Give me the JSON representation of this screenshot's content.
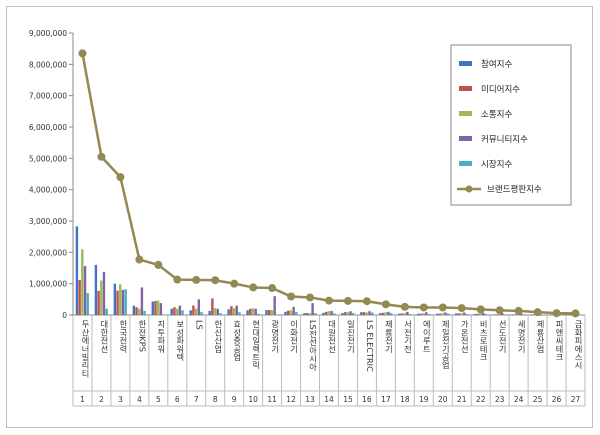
{
  "chart_data": {
    "type": "bar",
    "title": "",
    "xlabel": "",
    "ylabel": "",
    "ylim": [
      0,
      9000000
    ],
    "yticks": [
      "0",
      "1,000,000",
      "2,000,000",
      "3,000,000",
      "4,000,000",
      "5,000,000",
      "6,000,000",
      "7,000,000",
      "8,000,000",
      "9,000,000"
    ],
    "ytick_values": [
      0,
      1000000,
      2000000,
      3000000,
      4000000,
      5000000,
      6000000,
      7000000,
      8000000,
      9000000
    ],
    "grid": false,
    "legend_position": "top-right",
    "categories": [
      "두산에너빌리티",
      "대한전선",
      "한국전력",
      "한전KPS",
      "지투파워",
      "보성파워텍",
      "LS",
      "한신산업",
      "효성중공업",
      "현대일렉트릭",
      "광명전기",
      "이화전기",
      "LS전선아시아",
      "대원전선",
      "일진전기",
      "LS ELECTRIC",
      "제룡전기",
      "서전기전",
      "에이루트",
      "제일전기공업",
      "가온전선",
      "비츠로테크",
      "선도전기",
      "세명전기",
      "제룡산업",
      "피앤씨테크",
      "금화피에스시"
    ],
    "index_labels": [
      "1",
      "2",
      "3",
      "4",
      "5",
      "6",
      "7",
      "8",
      "9",
      "10",
      "11",
      "12",
      "13",
      "14",
      "15",
      "16",
      "17",
      "18",
      "19",
      "20",
      "21",
      "22",
      "23",
      "24",
      "25",
      "26",
      "27"
    ],
    "series": [
      {
        "name": "참여지수",
        "color": "#4472c4",
        "kind": "bar",
        "values": [
          2830000,
          1600000,
          1000000,
          300000,
          430000,
          200000,
          150000,
          130000,
          180000,
          150000,
          160000,
          100000,
          60000,
          70000,
          60000,
          90000,
          60000,
          40000,
          40000,
          40000,
          50000,
          30000,
          20000,
          20000,
          20000,
          15000,
          15000
        ]
      },
      {
        "name": "미디어지수",
        "color": "#c0504d",
        "kind": "bar",
        "values": [
          1120000,
          770000,
          780000,
          250000,
          450000,
          250000,
          300000,
          530000,
          280000,
          200000,
          160000,
          140000,
          60000,
          100000,
          90000,
          90000,
          70000,
          50000,
          40000,
          40000,
          50000,
          40000,
          20000,
          20000,
          20000,
          15000,
          15000
        ]
      },
      {
        "name": "소통지수",
        "color": "#9bbb59",
        "kind": "bar",
        "values": [
          2100000,
          1100000,
          980000,
          200000,
          460000,
          200000,
          200000,
          220000,
          220000,
          210000,
          160000,
          150000,
          60000,
          120000,
          90000,
          80000,
          90000,
          60000,
          60000,
          60000,
          60000,
          60000,
          40000,
          30000,
          30000,
          20000,
          20000
        ]
      },
      {
        "name": "커뮤니티지수",
        "color": "#8064a2",
        "kind": "bar",
        "values": [
          1560000,
          1370000,
          800000,
          880000,
          380000,
          300000,
          500000,
          200000,
          300000,
          200000,
          600000,
          260000,
          380000,
          130000,
          120000,
          120000,
          100000,
          100000,
          90000,
          80000,
          80000,
          70000,
          60000,
          50000,
          40000,
          40000,
          30000
        ]
      },
      {
        "name": "시장지수",
        "color": "#4bacc6",
        "kind": "bar",
        "values": [
          700000,
          200000,
          820000,
          130000,
          0,
          150000,
          100000,
          60000,
          90000,
          40000,
          0,
          100000,
          60000,
          50000,
          60000,
          80000,
          60000,
          30000,
          30000,
          50000,
          30000,
          30000,
          20000,
          20000,
          10000,
          10000,
          10000
        ]
      },
      {
        "name": "브랜드평판지수",
        "color": "#938953",
        "kind": "line",
        "values": [
          8350000,
          5050000,
          4400000,
          1770000,
          1600000,
          1130000,
          1120000,
          1110000,
          1000000,
          880000,
          860000,
          590000,
          560000,
          460000,
          450000,
          440000,
          340000,
          260000,
          240000,
          240000,
          220000,
          180000,
          150000,
          130000,
          90000,
          60000,
          50000
        ]
      }
    ]
  }
}
